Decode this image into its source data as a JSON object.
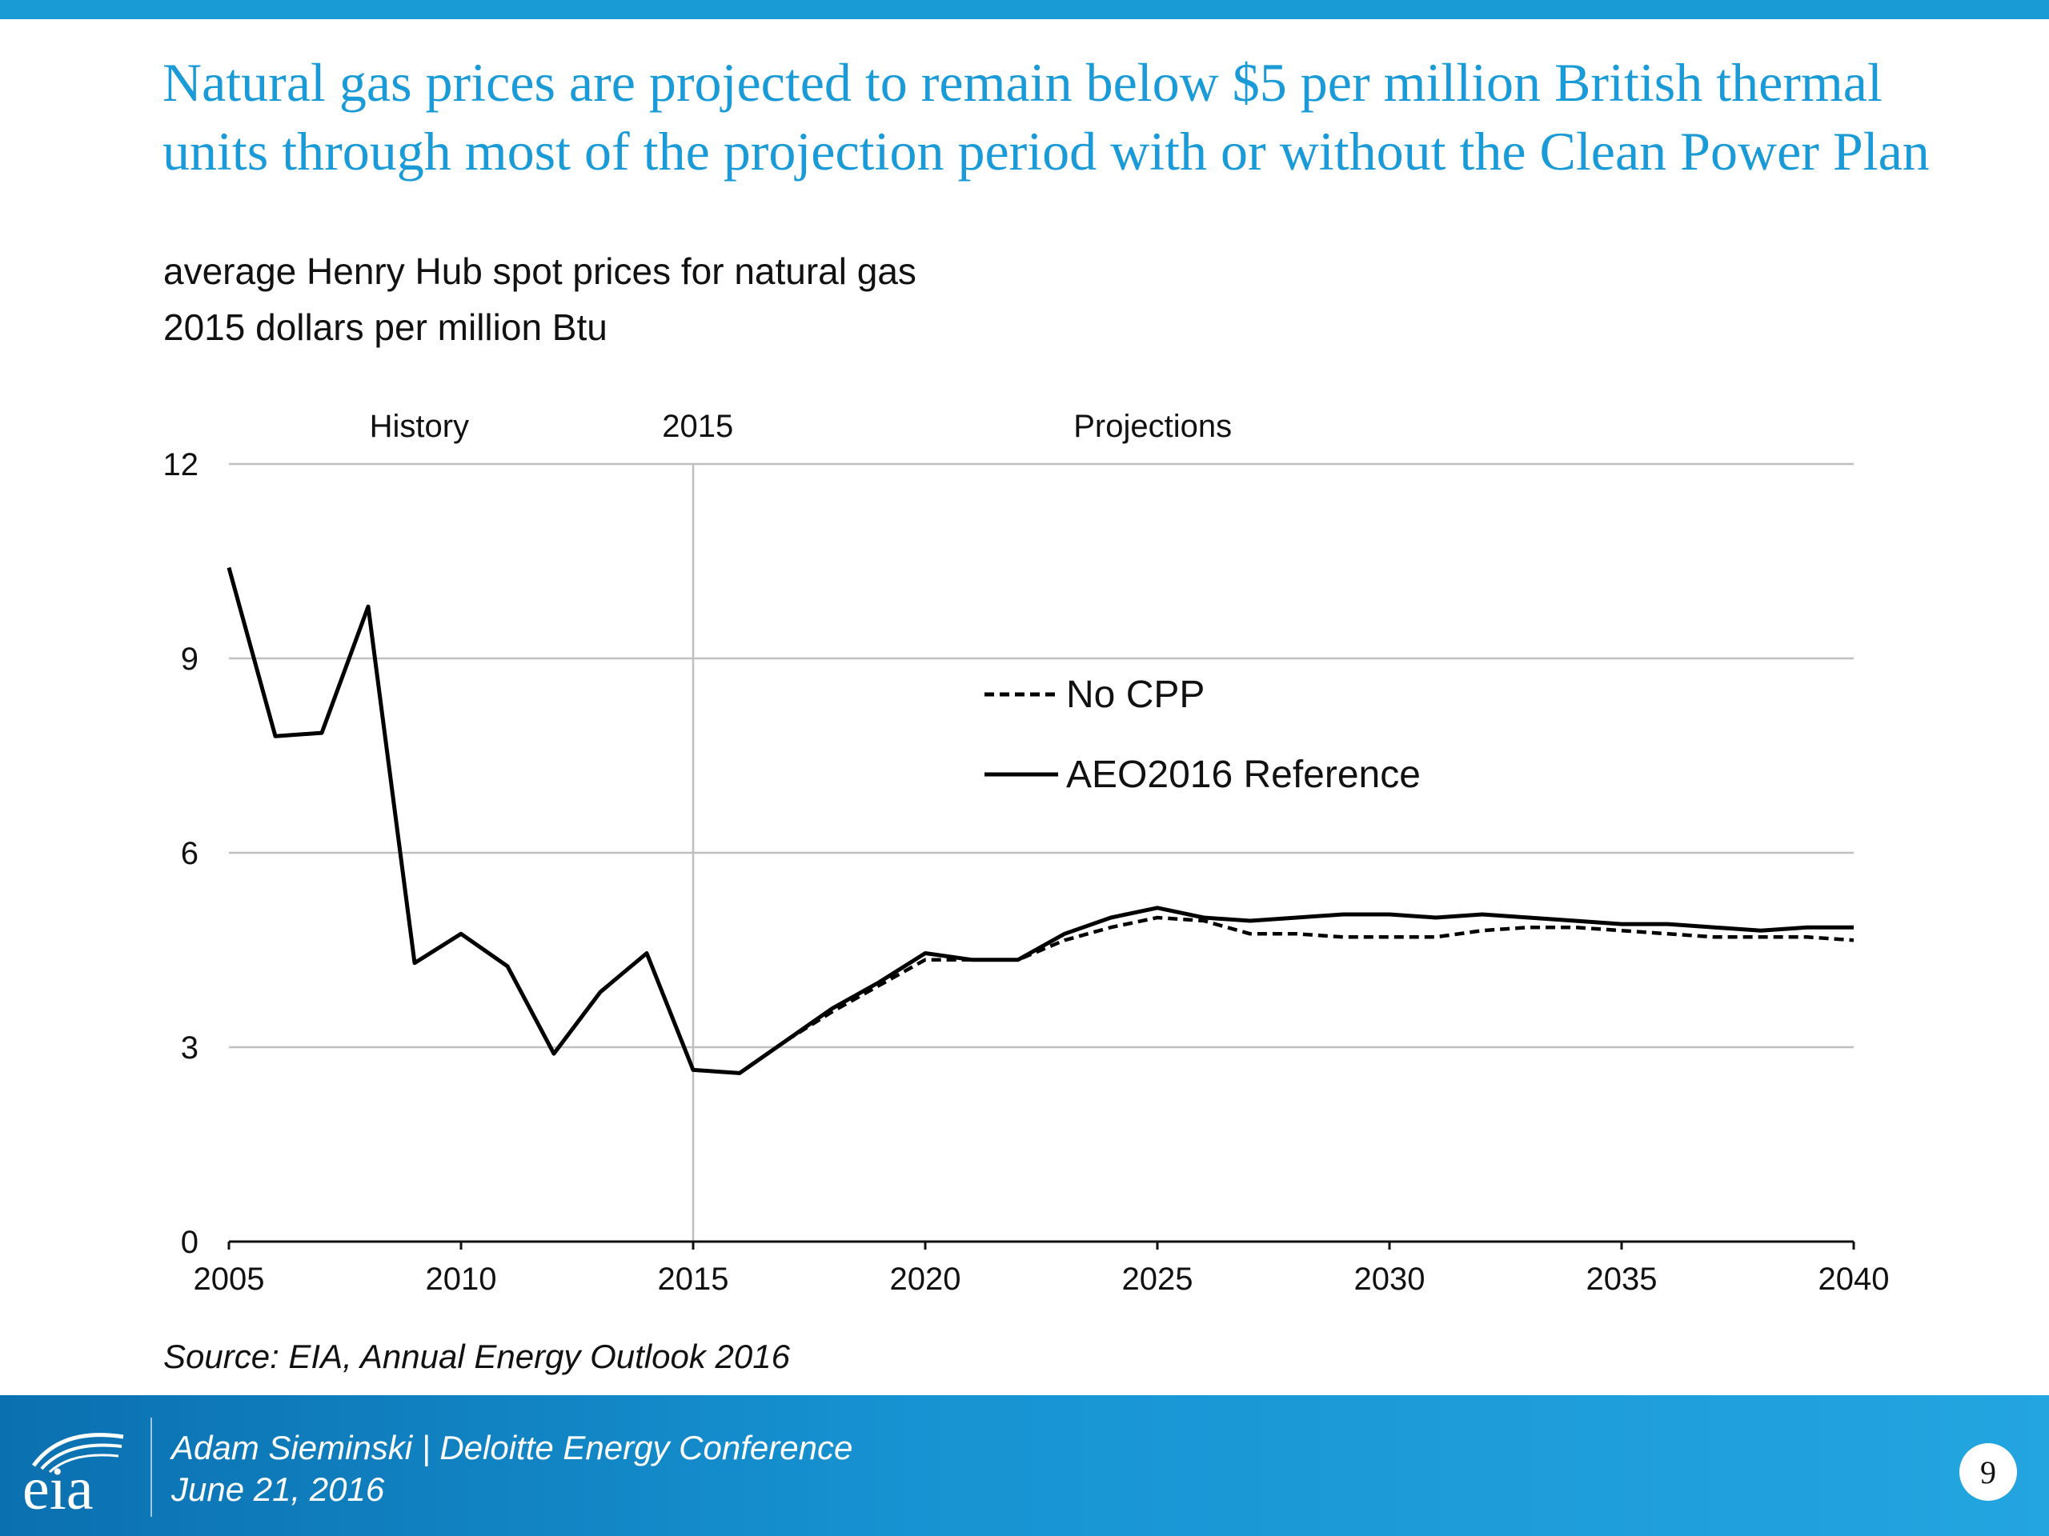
{
  "slide": {
    "title": "Natural gas prices are projected to remain below $5 per million British thermal units through most of the projection period with or without the Clean Power Plan",
    "subtitle_1": "average Henry Hub spot prices for natural gas",
    "subtitle_2": "2015 dollars per million Btu",
    "source": "Source:  EIA, Annual Energy Outlook 2016",
    "logo_text": "eia",
    "footer_line_1": "Adam Sieminski | Deloitte Energy Conference",
    "footer_line_2": "June 21, 2016",
    "page_number": "9"
  },
  "colors": {
    "top_bar": "#199bd6",
    "title": "#1a9bd7",
    "footer": "#1793d2",
    "gridline": "#bfbfbf",
    "series": "#000000"
  },
  "chart_data": {
    "type": "line",
    "title": "",
    "xlim": [
      2005,
      2040
    ],
    "ylim": [
      0,
      12
    ],
    "x_ticks": [
      2005,
      2010,
      2015,
      2020,
      2025,
      2030,
      2035,
      2040
    ],
    "y_ticks": [
      0,
      3,
      6,
      9,
      12
    ],
    "grid": true,
    "annotations": [
      {
        "text": "History",
        "x": 2009.1
      },
      {
        "text": "2015",
        "x": 2015.1
      },
      {
        "text": "Projections",
        "x": 2024.9
      }
    ],
    "divider_x": 2015,
    "legend": {
      "position": "center"
    },
    "series": [
      {
        "name": "No CPP",
        "style": "dashed",
        "x": [
          2005,
          2006,
          2007,
          2008,
          2009,
          2010,
          2011,
          2012,
          2013,
          2014,
          2015,
          2016,
          2017,
          2018,
          2019,
          2020,
          2021,
          2022,
          2023,
          2024,
          2025,
          2026,
          2027,
          2028,
          2029,
          2030,
          2031,
          2032,
          2033,
          2034,
          2035,
          2036,
          2037,
          2038,
          2039,
          2040
        ],
        "values": [
          10.4,
          7.8,
          7.85,
          9.8,
          4.3,
          4.75,
          4.25,
          2.9,
          3.85,
          4.45,
          2.65,
          2.6,
          3.1,
          3.55,
          3.95,
          4.35,
          4.35,
          4.35,
          4.65,
          4.85,
          5.0,
          4.95,
          4.75,
          4.75,
          4.7,
          4.7,
          4.7,
          4.8,
          4.85,
          4.85,
          4.8,
          4.75,
          4.7,
          4.7,
          4.7,
          4.65
        ]
      },
      {
        "name": "AEO2016 Reference",
        "style": "solid",
        "x": [
          2005,
          2006,
          2007,
          2008,
          2009,
          2010,
          2011,
          2012,
          2013,
          2014,
          2015,
          2016,
          2017,
          2018,
          2019,
          2020,
          2021,
          2022,
          2023,
          2024,
          2025,
          2026,
          2027,
          2028,
          2029,
          2030,
          2031,
          2032,
          2033,
          2034,
          2035,
          2036,
          2037,
          2038,
          2039,
          2040
        ],
        "values": [
          10.4,
          7.8,
          7.85,
          9.8,
          4.3,
          4.75,
          4.25,
          2.9,
          3.85,
          4.45,
          2.65,
          2.6,
          3.1,
          3.6,
          4.0,
          4.45,
          4.35,
          4.35,
          4.75,
          5.0,
          5.15,
          5.0,
          4.95,
          5.0,
          5.05,
          5.05,
          5.0,
          5.05,
          5.0,
          4.95,
          4.9,
          4.9,
          4.85,
          4.8,
          4.85,
          4.85
        ]
      }
    ]
  }
}
